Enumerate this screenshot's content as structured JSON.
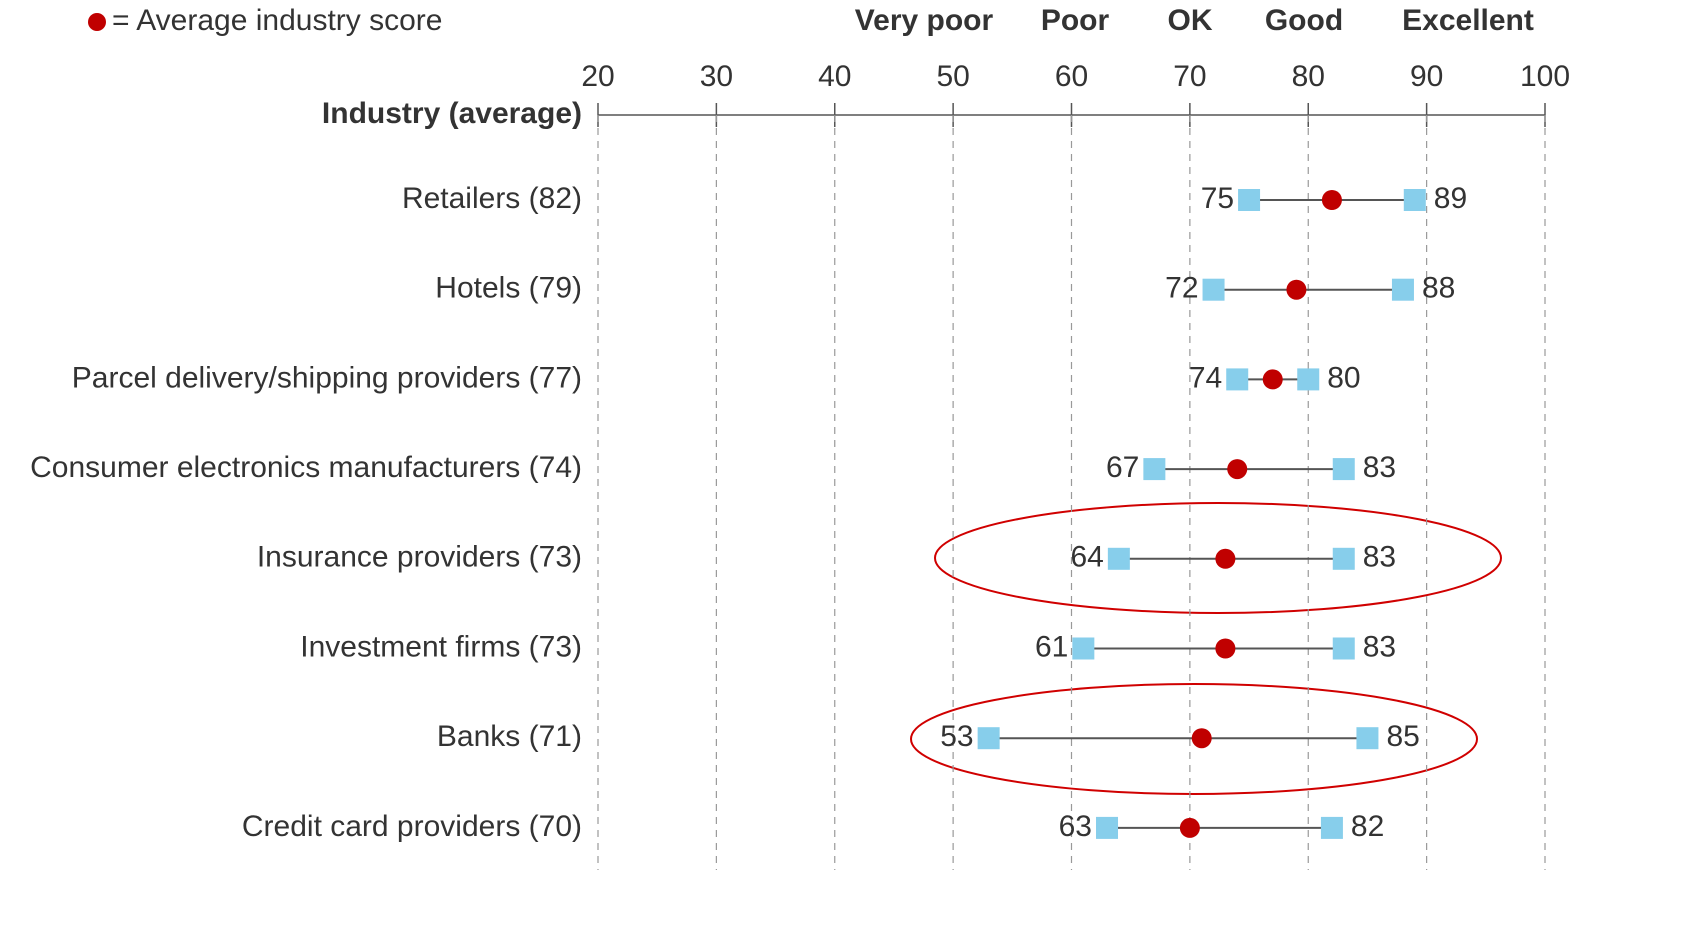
{
  "chart_data": {
    "type": "dumbbell",
    "legend": {
      "label": "= Average industry score"
    },
    "ratings": [
      "Very poor",
      "Poor",
      "OK",
      "Good",
      "Excellent"
    ],
    "axis_label": "Industry (average)",
    "categories": [
      "Retailers (82)",
      "Hotels (79)",
      "Parcel delivery/shipping providers (77)",
      "Consumer electronics manufacturers (74)",
      "Insurance providers (73)",
      "Investment firms (73)",
      "Banks (71)",
      "Credit card providers (70)"
    ],
    "low": {
      "color": "#87ceeb",
      "values": [
        75,
        72,
        74,
        67,
        64,
        61,
        53,
        63
      ]
    },
    "high": {
      "color": "#87ceeb",
      "values": [
        89,
        88,
        80,
        83,
        83,
        83,
        85,
        82
      ]
    },
    "average": {
      "color": "#c00000",
      "values": [
        82,
        79,
        77,
        74,
        73,
        73,
        71,
        70
      ]
    },
    "xlim": [
      20,
      100
    ],
    "xticks": [
      20,
      30,
      40,
      50,
      60,
      70,
      80,
      90,
      100
    ],
    "grid": true
  }
}
